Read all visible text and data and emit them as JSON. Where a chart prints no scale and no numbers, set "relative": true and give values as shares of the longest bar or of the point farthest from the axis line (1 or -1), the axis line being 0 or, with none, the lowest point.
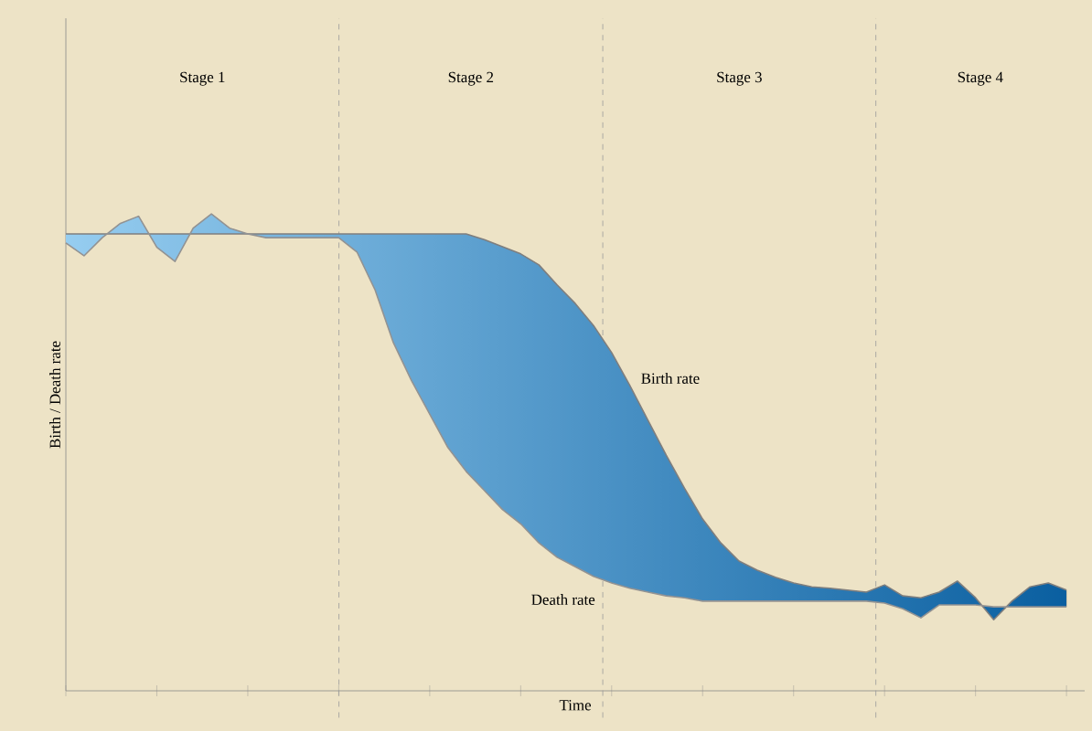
{
  "chart_data": {
    "type": "line",
    "relative": true,
    "xlabel": "Time",
    "ylabel": "Birth / Death rate",
    "marker": "none",
    "categories": [
      null,
      null,
      null,
      null,
      null,
      null,
      null,
      null,
      null,
      null,
      null,
      null,
      null,
      null,
      null,
      null,
      null,
      null,
      null,
      null,
      null,
      null,
      null,
      null,
      null,
      null,
      null,
      null,
      null,
      null,
      null,
      null,
      null,
      null,
      null,
      null,
      null,
      null,
      null,
      null,
      null,
      null,
      null,
      null,
      null,
      null,
      null,
      null,
      null,
      null,
      null,
      null,
      null,
      null,
      null,
      null
    ],
    "annotations": [
      "Stage 1",
      "Stage 2",
      "Stage 3",
      "Stage 4"
    ],
    "series": [
      {
        "name": "Birth rate",
        "color": "#7f7f7f",
        "values": [
          0.958,
          0.958,
          0.958,
          0.958,
          0.958,
          0.958,
          0.958,
          0.958,
          0.958,
          0.958,
          0.958,
          0.958,
          0.958,
          0.958,
          0.958,
          0.958,
          0.958,
          0.958,
          0.958,
          0.958,
          0.958,
          0.958,
          0.958,
          0.946,
          0.931,
          0.916,
          0.893,
          0.851,
          0.812,
          0.766,
          0.709,
          0.64,
          0.567,
          0.494,
          0.425,
          0.36,
          0.31,
          0.272,
          0.253,
          0.238,
          0.226,
          0.218,
          0.215,
          0.211,
          0.207,
          0.222,
          0.199,
          0.195,
          0.207,
          0.23,
          0.195,
          0.149,
          0.188,
          0.218,
          0.226,
          0.211
        ]
      },
      {
        "name": "Death rate",
        "color": "#939393",
        "values": [
          0.939,
          0.912,
          0.95,
          0.98,
          0.995,
          0.93,
          0.9,
          0.97,
          1.0,
          0.97,
          0.958,
          0.95,
          0.95,
          0.95,
          0.95,
          0.95,
          0.92,
          0.84,
          0.73,
          0.65,
          0.58,
          0.51,
          0.46,
          0.42,
          0.38,
          0.35,
          0.31,
          0.28,
          0.26,
          0.24,
          0.226,
          0.215,
          0.207,
          0.199,
          0.195,
          0.188,
          0.188,
          0.188,
          0.188,
          0.188,
          0.188,
          0.188,
          0.188,
          0.188,
          0.188,
          0.184,
          0.172,
          0.153,
          0.18,
          0.18,
          0.18,
          0.176,
          0.176,
          0.176,
          0.176,
          0.176
        ]
      }
    ]
  }
}
